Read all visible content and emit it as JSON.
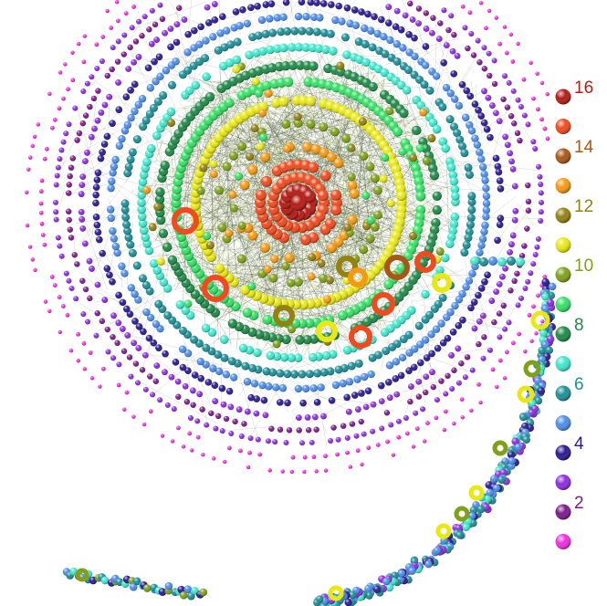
{
  "legend": {
    "entries": [
      {
        "level": 16,
        "label": "16",
        "color": "#b51a14",
        "labeled": true
      },
      {
        "level": 15,
        "label": "",
        "color": "#f04a1e",
        "labeled": false
      },
      {
        "level": 14,
        "label": "14",
        "color": "#a85716",
        "labeled": true
      },
      {
        "level": 13,
        "label": "",
        "color": "#f39a12",
        "labeled": false
      },
      {
        "level": 12,
        "label": "12",
        "color": "#938112",
        "labeled": true
      },
      {
        "level": 11,
        "label": "",
        "color": "#e8e814",
        "labeled": false
      },
      {
        "level": 10,
        "label": "10",
        "color": "#7fa11a",
        "labeled": true
      },
      {
        "level": 9,
        "label": "",
        "color": "#35e065",
        "labeled": false
      },
      {
        "level": 8,
        "label": "8",
        "color": "#1f8a48",
        "labeled": true
      },
      {
        "level": 7,
        "label": "",
        "color": "#3fe8cc",
        "labeled": false
      },
      {
        "level": 6,
        "label": "6",
        "color": "#1d8f98",
        "labeled": true
      },
      {
        "level": 5,
        "label": "",
        "color": "#4d8ee8",
        "labeled": false
      },
      {
        "level": 4,
        "label": "4",
        "color": "#2a1a92",
        "labeled": true
      },
      {
        "level": 3,
        "label": "",
        "color": "#8f2ce0",
        "labeled": false
      },
      {
        "level": 2,
        "label": "2",
        "color": "#7e1a8c",
        "labeled": true
      },
      {
        "level": 1,
        "label": "",
        "color": "#f02ee0",
        "labeled": false
      }
    ]
  }
}
